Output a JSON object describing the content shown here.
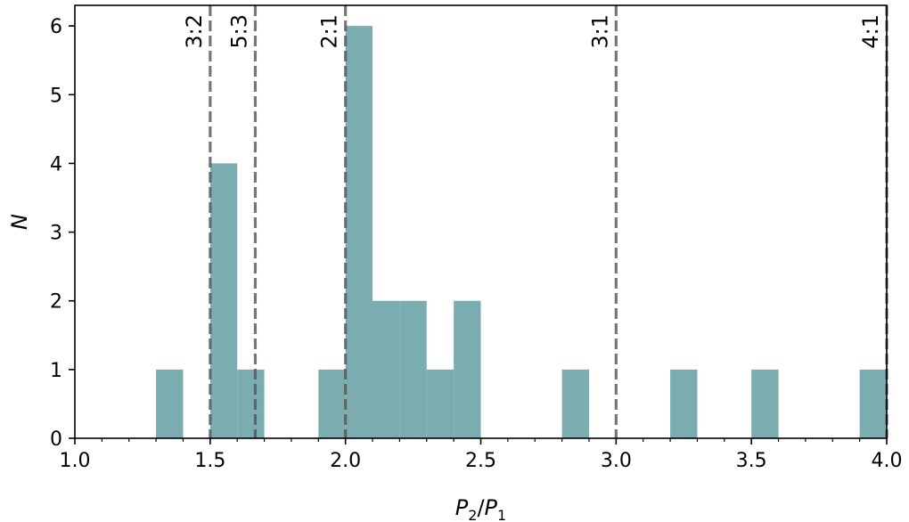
{
  "chart_data": {
    "type": "bar",
    "title": "",
    "xlabel": "P_2/P_1",
    "ylabel": "N",
    "xlim": [
      1.0,
      4.0
    ],
    "ylim": [
      0,
      6.3
    ],
    "x_ticks": [
      "1.0",
      "1.5",
      "2.0",
      "2.5",
      "3.0",
      "3.5",
      "4.0"
    ],
    "y_ticks": [
      "0",
      "1",
      "2",
      "3",
      "4",
      "5",
      "6"
    ],
    "bar_color": "#7aacb0",
    "bins": [
      {
        "x0": 1.3,
        "x1": 1.4,
        "count": 1
      },
      {
        "x0": 1.5,
        "x1": 1.6,
        "count": 4
      },
      {
        "x0": 1.6,
        "x1": 1.7,
        "count": 1
      },
      {
        "x0": 1.9,
        "x1": 2.0,
        "count": 1
      },
      {
        "x0": 2.0,
        "x1": 2.1,
        "count": 6
      },
      {
        "x0": 2.1,
        "x1": 2.2,
        "count": 2
      },
      {
        "x0": 2.2,
        "x1": 2.3,
        "count": 2
      },
      {
        "x0": 2.3,
        "x1": 2.4,
        "count": 1
      },
      {
        "x0": 2.4,
        "x1": 2.5,
        "count": 2
      },
      {
        "x0": 2.8,
        "x1": 2.9,
        "count": 1
      },
      {
        "x0": 3.2,
        "x1": 3.3,
        "count": 1
      },
      {
        "x0": 3.5,
        "x1": 3.6,
        "count": 1
      },
      {
        "x0": 3.9,
        "x1": 4.0,
        "count": 1
      }
    ],
    "resonances": [
      {
        "label": "3:2",
        "value": 1.5
      },
      {
        "label": "5:3",
        "value": 1.6667
      },
      {
        "label": "2:1",
        "value": 2.0
      },
      {
        "label": "3:1",
        "value": 3.0
      },
      {
        "label": "4:1",
        "value": 4.0
      }
    ],
    "resonance_line_color": "#555555",
    "grid": false,
    "legend": "none"
  }
}
